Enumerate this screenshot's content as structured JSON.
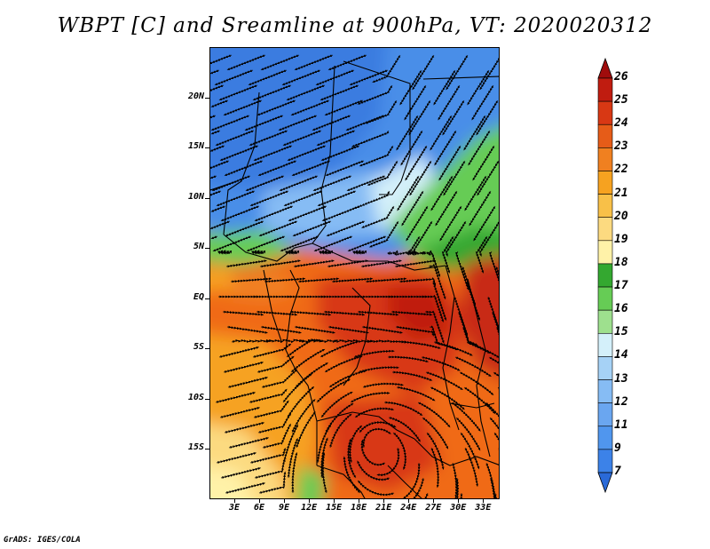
{
  "title": "WBPT [C] and Sreamline at 900hPa, VT: 2020020312",
  "footer": "GrADS: IGES/COLA",
  "map": {
    "lon_range": [
      0,
      35
    ],
    "lat_range": [
      -20,
      25
    ],
    "y_ticks": [
      {
        "label": "20N",
        "lat": 20
      },
      {
        "label": "15N",
        "lat": 15
      },
      {
        "label": "10N",
        "lat": 10
      },
      {
        "label": "5N",
        "lat": 5
      },
      {
        "label": "EQ",
        "lat": 0
      },
      {
        "label": "5S",
        "lat": -5
      },
      {
        "label": "10S",
        "lat": -10
      },
      {
        "label": "15S",
        "lat": -15
      }
    ],
    "x_ticks": [
      {
        "label": "3E",
        "lon": 3
      },
      {
        "label": "6E",
        "lon": 6
      },
      {
        "label": "9E",
        "lon": 9
      },
      {
        "label": "12E",
        "lon": 12
      },
      {
        "label": "15E",
        "lon": 15
      },
      {
        "label": "18E",
        "lon": 18
      },
      {
        "label": "21E",
        "lon": 21
      },
      {
        "label": "24E",
        "lon": 24
      },
      {
        "label": "27E",
        "lon": 27
      },
      {
        "label": "30E",
        "lon": 30
      },
      {
        "label": "33E",
        "lon": 33
      }
    ]
  },
  "colorbar": {
    "levels": [
      "7",
      "9",
      "11",
      "12",
      "13",
      "14",
      "15",
      "16",
      "17",
      "18",
      "19",
      "20",
      "21",
      "22",
      "23",
      "24",
      "25",
      "26"
    ],
    "colors": [
      "#2a6ad8",
      "#3c82e8",
      "#5096ee",
      "#6aa6f0",
      "#86bcf4",
      "#a6d2f6",
      "#d4f0fa",
      "#9ee08e",
      "#66cc55",
      "#34a830",
      "#fff2a8",
      "#fcda80",
      "#f8c048",
      "#f6a220",
      "#f08020",
      "#e65c18",
      "#d83814",
      "#c01c10",
      "#a00c0c"
    ]
  }
}
